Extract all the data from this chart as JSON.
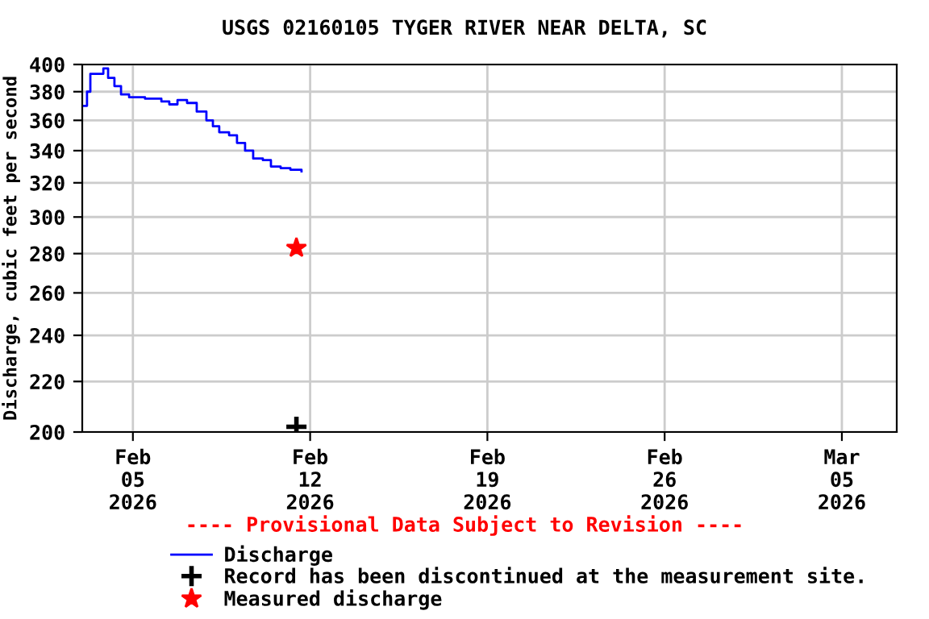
{
  "chart_data": {
    "type": "step",
    "title": "USGS 02160105 TYGER RIVER NEAR DELTA, SC",
    "ylabel": "Discharge, cubic feet per second",
    "log": "y",
    "grid": true,
    "legend": "bottom",
    "xlim": [
      "2026-02-03T00:00",
      "2026-03-07T04:00"
    ],
    "xticks": [
      {
        "value": "2026-02-05",
        "label": "Feb\n05\n2026"
      },
      {
        "value": "2026-02-12",
        "label": "Feb\n12\n2026"
      },
      {
        "value": "2026-02-19",
        "label": "Feb\n19\n2026"
      },
      {
        "value": "2026-02-26",
        "label": "Feb\n26\n2026"
      },
      {
        "value": "2026-03-05",
        "label": "Mar\n05\n2026"
      }
    ],
    "ylim": [
      200,
      400
    ],
    "yticks": [
      200,
      220,
      240,
      260,
      280,
      300,
      320,
      340,
      360,
      380,
      400
    ],
    "annotations": [
      "---- Provisional Data Subject to Revision ----"
    ],
    "series": [
      {
        "name": "Discharge",
        "color": "#0000ff",
        "marker": "none",
        "x": [
          "2026-02-03T01:30",
          "2026-02-03T03:00",
          "2026-02-03T04:30",
          "2026-02-03T07:40",
          "2026-02-03T13:45",
          "2026-02-03T20:00",
          "2026-02-04T00:30",
          "2026-02-04T06:30",
          "2026-02-04T12:45",
          "2026-02-04T20:25",
          "2026-02-05T11:30",
          "2026-02-06T03:00",
          "2026-02-06T10:30",
          "2026-02-06T18:15",
          "2026-02-07T03:20",
          "2026-02-07T12:30",
          "2026-02-07T21:40",
          "2026-02-08T03:50",
          "2026-02-08T09:50",
          "2026-02-08T19:10",
          "2026-02-09T02:40",
          "2026-02-09T10:20",
          "2026-02-09T18:00",
          "2026-02-10T03:10",
          "2026-02-10T10:50",
          "2026-02-10T20:00",
          "2026-02-11T05:15",
          "2026-02-11T15:50"
        ],
        "values": [
          370,
          370,
          380,
          393,
          393,
          397,
          390,
          384,
          378,
          376,
          375,
          373,
          371,
          374,
          372,
          366,
          360,
          356,
          352,
          350,
          345,
          340,
          335,
          334,
          330,
          329,
          328,
          327
        ]
      },
      {
        "name": "Record has been discontinued at the measurement site.",
        "type": "scatter",
        "marker": "cross",
        "color": "#000000",
        "x": [
          "2026-02-11T11:00"
        ],
        "values": [
          202
        ]
      },
      {
        "name": "Measured discharge",
        "type": "scatter",
        "marker": "star",
        "color": "#ff0000",
        "x": [
          "2026-02-11T11:00"
        ],
        "values": [
          283
        ]
      }
    ]
  }
}
